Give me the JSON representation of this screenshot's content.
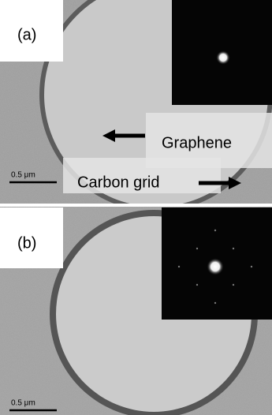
{
  "panels": [
    {
      "label": "(a)",
      "annotations": [
        "Graphene",
        "Carbon grid"
      ],
      "scale_bar": "0.5 μm"
    },
    {
      "label": "(b)",
      "scale_bar": "0.5 μm"
    }
  ]
}
